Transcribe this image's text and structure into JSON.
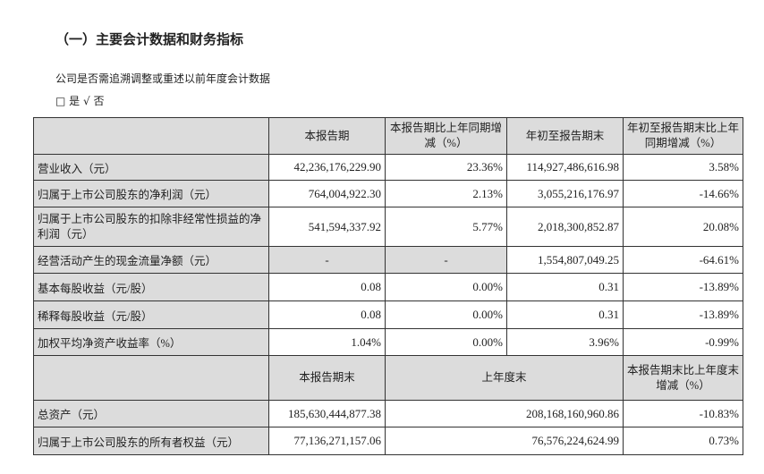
{
  "title": "（一）主要会计数据和财务指标",
  "note": "公司是否需追溯调整或重述以前年度会计数据",
  "options": {
    "yes_box": "□",
    "yes": "是",
    "no_check": "√",
    "no": "否"
  },
  "table": {
    "headers": [
      "",
      "本报告期",
      "本报告期比上年同期增减（%）",
      "年初至报告期末",
      "年初至报告期末比上年同期增减（%）"
    ],
    "rows": [
      {
        "label": "营业收入（元）",
        "cells": [
          "42,236,176,229.90",
          "23.36%",
          "114,927,486,616.98",
          "3.58%"
        ]
      },
      {
        "label": "归属于上市公司股东的净利润（元）",
        "cells": [
          "764,004,922.30",
          "2.13%",
          "3,055,216,176.97",
          "-14.66%"
        ]
      },
      {
        "label": "归属于上市公司股东的扣除非经常性损益的净利润（元）",
        "cells": [
          "541,594,337.92",
          "5.77%",
          "2,018,300,852.87",
          "20.08%"
        ]
      },
      {
        "label": "经营活动产生的现金流量净额（元）",
        "cells": [
          "-",
          "-",
          "1,554,807,049.25",
          "-64.61%"
        ]
      },
      {
        "label": "基本每股收益（元/股）",
        "cells": [
          "0.08",
          "0.00%",
          "0.31",
          "-13.89%"
        ]
      },
      {
        "label": "稀释每股收益（元/股）",
        "cells": [
          "0.08",
          "0.00%",
          "0.31",
          "-13.89%"
        ]
      },
      {
        "label": "加权平均净资产收益率（%）",
        "cells": [
          "1.04%",
          "0.00%",
          "3.96%",
          "-0.99%"
        ]
      }
    ],
    "headers2": [
      "",
      "本报告期末",
      "上年度末",
      "本报告期末比上年度末增减（%）"
    ],
    "rows2": [
      {
        "label": "总资产（元）",
        "cells": [
          "185,630,444,877.38",
          "208,168,160,960.86",
          "-10.83%"
        ]
      },
      {
        "label": "归属于上市公司股东的所有者权益（元）",
        "cells": [
          "77,136,271,157.06",
          "76,576,224,624.99",
          "0.73%"
        ]
      }
    ]
  }
}
